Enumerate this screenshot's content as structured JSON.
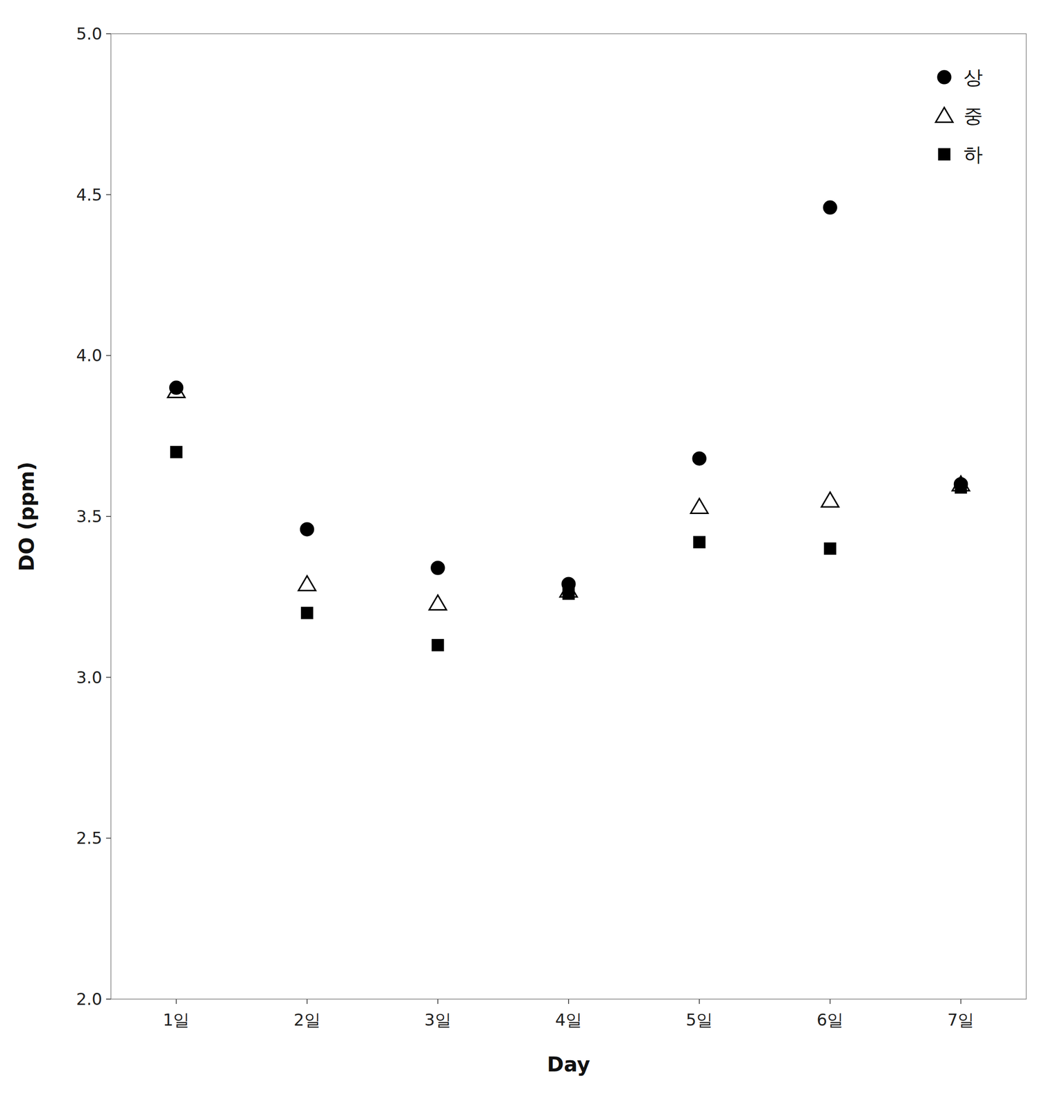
{
  "chart_data": {
    "type": "scatter",
    "xlabel": "Day",
    "ylabel": "DO (ppm)",
    "categories": [
      "1일",
      "2일",
      "3일",
      "4일",
      "5일",
      "6일",
      "7일"
    ],
    "series": [
      {
        "name": "상",
        "color": "black",
        "marker": "circle",
        "values": [
          3.9,
          3.46,
          3.34,
          3.29,
          3.68,
          4.46,
          3.6
        ]
      },
      {
        "name": "중",
        "color": "black",
        "marker": "triangle-open",
        "values": [
          3.89,
          3.29,
          3.23,
          3.27,
          3.53,
          3.55,
          3.6
        ]
      },
      {
        "name": "하",
        "color": "black",
        "marker": "square",
        "values": [
          3.7,
          3.2,
          3.1,
          3.26,
          3.42,
          3.4,
          3.59
        ]
      }
    ],
    "ylim": [
      2.0,
      5.0
    ],
    "yticks": [
      {
        "value": 2.0,
        "label": "2.0"
      },
      2.5,
      {
        "value": 3.0,
        "label": "3.0"
      },
      3.5,
      {
        "value": 4.0,
        "label": "4.0"
      },
      4.5,
      {
        "value": 5.0,
        "label": "5.0"
      }
    ],
    "grid": false,
    "legend": "upper right"
  }
}
